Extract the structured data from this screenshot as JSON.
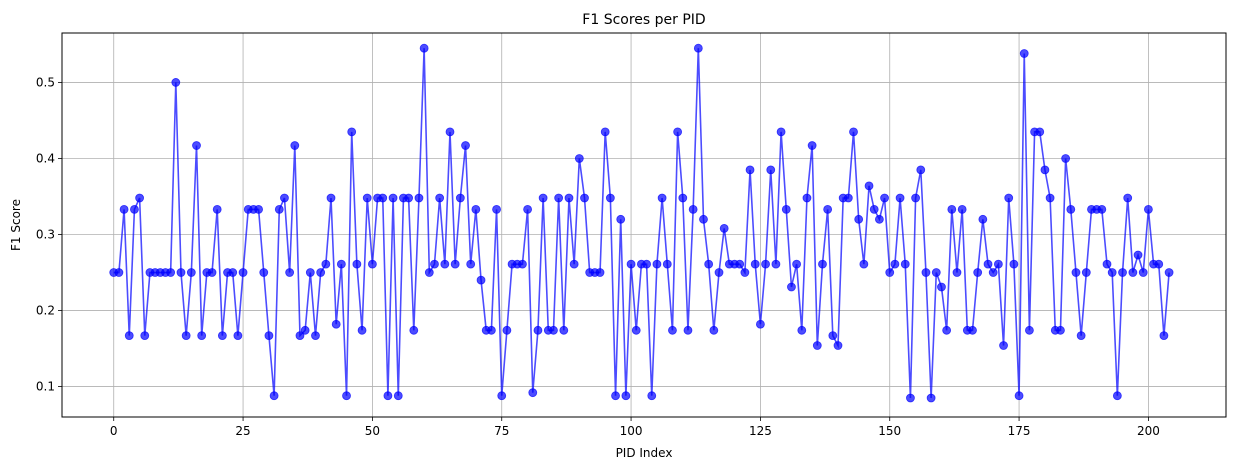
{
  "chart_data": {
    "type": "line",
    "title": "F1 Scores per PID",
    "xlabel": "PID Index",
    "ylabel": "F1 Score",
    "xlim": [
      -10,
      215
    ],
    "ylim": [
      0.06,
      0.565
    ],
    "xticks": [
      0,
      25,
      50,
      75,
      100,
      125,
      150,
      175,
      200
    ],
    "yticks": [
      0.1,
      0.2,
      0.3,
      0.4,
      0.5
    ],
    "ytick_labels": [
      "0.1",
      "0.2",
      "0.3",
      "0.4",
      "0.5"
    ],
    "grid": true,
    "marker": "circle",
    "series": [
      {
        "color": "#0000ff",
        "values": [
          0.25,
          0.25,
          0.333,
          0.167,
          0.333,
          0.348,
          0.167,
          0.25,
          0.25,
          0.25,
          0.25,
          0.25,
          0.5,
          0.25,
          0.167,
          0.25,
          0.417,
          0.167,
          0.25,
          0.25,
          0.333,
          0.167,
          0.25,
          0.25,
          0.167,
          0.25,
          0.333,
          0.333,
          0.333,
          0.25,
          0.167,
          0.088,
          0.333,
          0.348,
          0.25,
          0.417,
          0.167,
          0.174,
          0.25,
          0.167,
          0.25,
          0.261,
          0.348,
          0.182,
          0.261,
          0.088,
          0.435,
          0.261,
          0.174,
          0.348,
          0.261,
          0.348,
          0.348,
          0.088,
          0.348,
          0.088,
          0.348,
          0.348,
          0.174,
          0.348,
          0.545,
          0.25,
          0.261,
          0.348,
          0.261,
          0.435,
          0.261,
          0.348,
          0.417,
          0.261,
          0.333,
          0.24,
          0.174,
          0.174,
          0.333,
          0.088,
          0.174,
          0.261,
          0.261,
          0.261,
          0.333,
          0.092,
          0.174,
          0.348,
          0.174,
          0.174,
          0.348,
          0.174,
          0.348,
          0.261,
          0.4,
          0.348,
          0.25,
          0.25,
          0.25,
          0.435,
          0.348,
          0.088,
          0.32,
          0.088,
          0.261,
          0.174,
          0.261,
          0.261,
          0.088,
          0.261,
          0.348,
          0.261,
          0.174,
          0.435,
          0.348,
          0.174,
          0.333,
          0.545,
          0.32,
          0.261,
          0.174,
          0.25,
          0.308,
          0.261,
          0.261,
          0.261,
          0.25,
          0.385,
          0.261,
          0.182,
          0.261,
          0.385,
          0.261,
          0.435,
          0.333,
          0.231,
          0.261,
          0.174,
          0.348,
          0.417,
          0.154,
          0.261,
          0.333,
          0.167,
          0.154,
          0.348,
          0.348,
          0.435,
          0.32,
          0.261,
          0.364,
          0.333,
          0.32,
          0.348,
          0.25,
          0.261,
          0.348,
          0.261,
          0.085,
          0.348,
          0.385,
          0.25,
          0.085,
          0.25,
          0.231,
          0.174,
          0.333,
          0.25,
          0.333,
          0.174,
          0.174,
          0.25,
          0.32,
          0.261,
          0.25,
          0.261,
          0.154,
          0.348,
          0.261,
          0.088,
          0.538,
          0.174,
          0.435,
          0.435,
          0.385,
          0.348,
          0.174,
          0.174,
          0.4,
          0.333,
          0.25,
          0.167,
          0.25,
          0.333,
          0.333,
          0.333,
          0.261,
          0.25,
          0.088,
          0.25,
          0.348,
          0.25,
          0.273,
          0.25,
          0.333,
          0.261,
          0.261,
          0.167,
          0.25
        ]
      }
    ]
  }
}
